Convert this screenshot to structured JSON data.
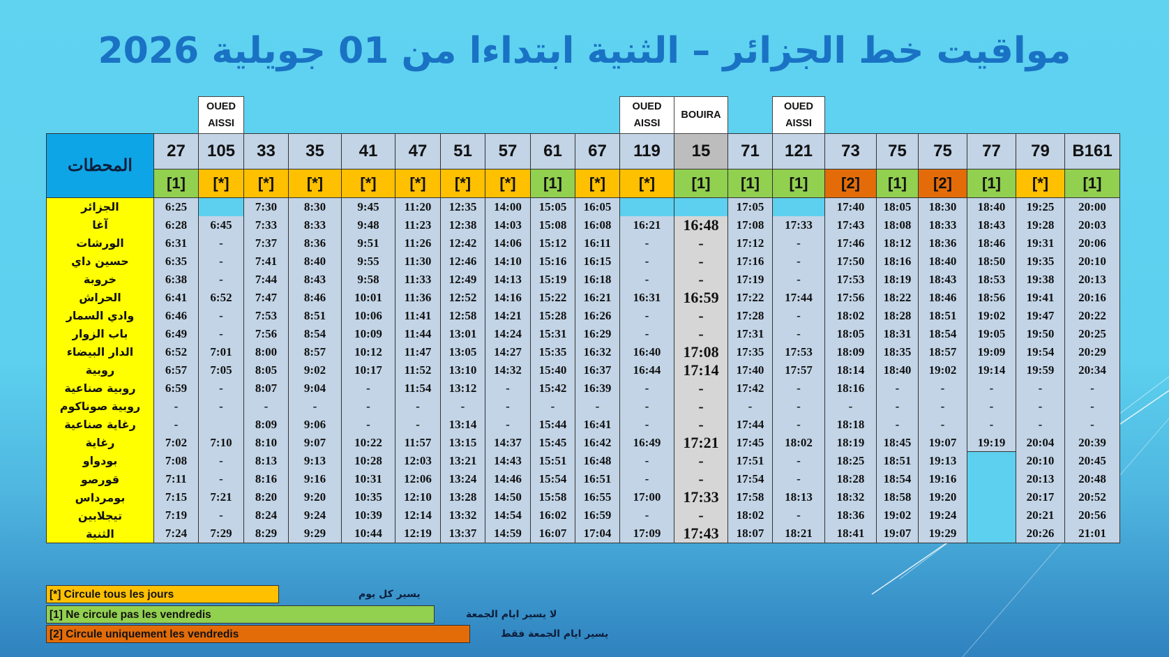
{
  "title": "مواقيت خط الجزائر – الثنية  ابتداءا من 01 جويلية 2026",
  "header_label": "المحطات",
  "trains": [
    {
      "origin": "",
      "number": "27",
      "type": "[1]",
      "type_class": "t-one",
      "times": [
        "6:25",
        "6:28",
        "6:31",
        "6:35",
        "6:38",
        "6:41",
        "6:46",
        "6:49",
        "6:52",
        "6:57",
        "6:59",
        "-",
        "-",
        "7:02",
        "7:08",
        "7:11",
        "7:15",
        "7:19",
        "7:24"
      ]
    },
    {
      "origin": "OUED AISSI",
      "number": "105",
      "type": "[*]",
      "type_class": "t-star",
      "times": [
        "",
        "6:45",
        "-",
        "-",
        "-",
        "6:52",
        "-",
        "-",
        "7:01",
        "7:05",
        "-",
        "-",
        "",
        "7:10",
        "-",
        "-",
        "7:21",
        "-",
        "7:29"
      ]
    },
    {
      "origin": "",
      "number": "33",
      "type": "[*]",
      "type_class": "t-star",
      "times": [
        "7:30",
        "7:33",
        "7:37",
        "7:41",
        "7:44",
        "7:47",
        "7:53",
        "7:56",
        "8:00",
        "8:05",
        "8:07",
        "-",
        "8:09",
        "8:10",
        "8:13",
        "8:16",
        "8:20",
        "8:24",
        "8:29"
      ]
    },
    {
      "origin": "",
      "number": "35",
      "type": "[*]",
      "type_class": "t-star",
      "times": [
        "8:30",
        "8:33",
        "8:36",
        "8:40",
        "8:43",
        "8:46",
        "8:51",
        "8:54",
        "8:57",
        "9:02",
        "9:04",
        "-",
        "9:06",
        "9:07",
        "9:13",
        "9:16",
        "9:20",
        "9:24",
        "9:29"
      ]
    },
    {
      "origin": "",
      "number": "41",
      "type": "[*]",
      "type_class": "t-star",
      "times": [
        "9:45",
        "9:48",
        "9:51",
        "9:55",
        "9:58",
        "10:01",
        "10:06",
        "10:09",
        "10:12",
        "10:17",
        "-",
        "-",
        "-",
        "10:22",
        "10:28",
        "10:31",
        "10:35",
        "10:39",
        "10:44"
      ]
    },
    {
      "origin": "",
      "number": "47",
      "type": "[*]",
      "type_class": "t-star",
      "times": [
        "11:20",
        "11:23",
        "11:26",
        "11:30",
        "11:33",
        "11:36",
        "11:41",
        "11:44",
        "11:47",
        "11:52",
        "11:54",
        "-",
        "-",
        "11:57",
        "12:03",
        "12:06",
        "12:10",
        "12:14",
        "12:19"
      ]
    },
    {
      "origin": "",
      "number": "51",
      "type": "[*]",
      "type_class": "t-star",
      "times": [
        "12:35",
        "12:38",
        "12:42",
        "12:46",
        "12:49",
        "12:52",
        "12:58",
        "13:01",
        "13:05",
        "13:10",
        "13:12",
        "-",
        "13:14",
        "13:15",
        "13:21",
        "13:24",
        "13:28",
        "13:32",
        "13:37"
      ]
    },
    {
      "origin": "",
      "number": "57",
      "type": "[*]",
      "type_class": "t-star",
      "times": [
        "14:00",
        "14:03",
        "14:06",
        "14:10",
        "14:13",
        "14:16",
        "14:21",
        "14:24",
        "14:27",
        "14:32",
        "-",
        "-",
        "-",
        "14:37",
        "14:43",
        "14:46",
        "14:50",
        "14:54",
        "14:59"
      ]
    },
    {
      "origin": "",
      "number": "61",
      "type": "[1]",
      "type_class": "t-one",
      "times": [
        "15:05",
        "15:08",
        "15:12",
        "15:16",
        "15:19",
        "15:22",
        "15:28",
        "15:31",
        "15:35",
        "15:40",
        "15:42",
        "-",
        "15:44",
        "15:45",
        "15:51",
        "15:54",
        "15:58",
        "16:02",
        "16:07"
      ]
    },
    {
      "origin": "",
      "number": "67",
      "type": "[*]",
      "type_class": "t-star",
      "times": [
        "16:05",
        "16:08",
        "16:11",
        "16:15",
        "16:18",
        "16:21",
        "16:26",
        "16:29",
        "16:32",
        "16:37",
        "16:39",
        "-",
        "16:41",
        "16:42",
        "16:48",
        "16:51",
        "16:55",
        "16:59",
        "17:04"
      ]
    },
    {
      "origin": "OUED AISSI",
      "number": "119",
      "type": "[*]",
      "type_class": "t-star",
      "times": [
        "",
        "16:21",
        "-",
        "-",
        "-",
        "16:31",
        "-",
        "-",
        "16:40",
        "16:44",
        "-",
        "-",
        "-",
        "16:49",
        "-",
        "-",
        "17:00",
        "-",
        "17:09"
      ]
    },
    {
      "origin": "BOUIRA",
      "number": "15",
      "type": "[1]",
      "type_class": "t-one",
      "times": [
        "",
        "16:48",
        "-",
        "-",
        "-",
        "16:59",
        "-",
        "-",
        "17:08",
        "17:14",
        "-",
        "-",
        "-",
        "17:21",
        "-",
        "-",
        "17:33",
        "-",
        "17:43"
      ]
    },
    {
      "origin": "",
      "number": "71",
      "type": "[1]",
      "type_class": "t-one",
      "times": [
        "17:05",
        "17:08",
        "17:12",
        "17:16",
        "17:19",
        "17:22",
        "17:28",
        "17:31",
        "17:35",
        "17:40",
        "17:42",
        "-",
        "17:44",
        "17:45",
        "17:51",
        "17:54",
        "17:58",
        "18:02",
        "18:07"
      ]
    },
    {
      "origin": "OUED AISSI",
      "number": "121",
      "type": "[1]",
      "type_class": "t-one",
      "times": [
        "",
        "17:33",
        "-",
        "-",
        "-",
        "17:44",
        "-",
        "-",
        "17:53",
        "17:57",
        "-",
        "-",
        "-",
        "18:02",
        "-",
        "-",
        "18:13",
        "-",
        "18:21"
      ]
    },
    {
      "origin": "",
      "number": "73",
      "type": "[2]",
      "type_class": "t-two",
      "times": [
        "17:40",
        "17:43",
        "17:46",
        "17:50",
        "17:53",
        "17:56",
        "18:02",
        "18:05",
        "18:09",
        "18:14",
        "18:16",
        "-",
        "18:18",
        "18:19",
        "18:25",
        "18:28",
        "18:32",
        "18:36",
        "18:41"
      ]
    },
    {
      "origin": "",
      "number": "75",
      "type": "[1]",
      "type_class": "t-one",
      "times": [
        "18:05",
        "18:08",
        "18:12",
        "18:16",
        "18:19",
        "18:22",
        "18:28",
        "18:31",
        "18:35",
        "18:40",
        "-",
        "-",
        "-",
        "18:45",
        "18:51",
        "18:54",
        "18:58",
        "19:02",
        "19:07"
      ]
    },
    {
      "origin": "",
      "number": "75",
      "type": "[2]",
      "type_class": "t-two",
      "times": [
        "18:30",
        "18:33",
        "18:36",
        "18:40",
        "18:43",
        "18:46",
        "18:51",
        "18:54",
        "18:57",
        "19:02",
        "-",
        "-",
        "-",
        "19:07",
        "19:13",
        "19:16",
        "19:20",
        "19:24",
        "19:29"
      ]
    },
    {
      "origin": "",
      "number": "77",
      "type": "[1]",
      "type_class": "t-one",
      "times": [
        "18:40",
        "18:43",
        "18:46",
        "18:50",
        "18:53",
        "18:56",
        "19:02",
        "19:05",
        "19:09",
        "19:14",
        "-",
        "-",
        "-",
        "19:19",
        "",
        "",
        "",
        "",
        ""
      ]
    },
    {
      "origin": "",
      "number": "79",
      "type": "[*]",
      "type_class": "t-star",
      "times": [
        "19:25",
        "19:28",
        "19:31",
        "19:35",
        "19:38",
        "19:41",
        "19:47",
        "19:50",
        "19:54",
        "19:59",
        "-",
        "-",
        "-",
        "20:04",
        "20:10",
        "20:13",
        "20:17",
        "20:21",
        "20:26"
      ]
    },
    {
      "origin": "",
      "number": "B161",
      "type": "[1]",
      "type_class": "t-one",
      "times": [
        "20:00",
        "20:03",
        "20:06",
        "20:10",
        "20:13",
        "20:16",
        "20:22",
        "20:25",
        "20:29",
        "20:34",
        "-",
        "-",
        "-",
        "20:39",
        "20:45",
        "20:48",
        "20:52",
        "20:56",
        "21:01"
      ]
    }
  ],
  "stations": [
    "الجزائر",
    "آغا",
    "الورشات",
    "حسين داي",
    "خروبة",
    "الحراش",
    "وادي السمار",
    "باب الزوار",
    "الدار البيضاء",
    "روبية",
    "روبية صناعية",
    "روبية صوناكوم",
    "رغاية صناعية",
    "رغاية",
    "بودواو",
    "قورصو",
    "بومرداس",
    "تيجلابين",
    "الثنية"
  ],
  "legend": [
    {
      "label": "[*]  Circule tous les jours",
      "arabic": "يسير كل يوم"
    },
    {
      "label": "[1]  Ne circule pas les vendredis",
      "arabic": "لا يسير ايام الجمعة"
    },
    {
      "label": "[2] Circule uniquement  les vendredis",
      "arabic": "يسير ايام الجمعة  فقط"
    }
  ],
  "colors": {
    "daily": "#ffc000",
    "not_friday": "#92d050",
    "friday_only": "#e36c09",
    "station_column": "#ffff00",
    "title": "#1a72c4"
  }
}
